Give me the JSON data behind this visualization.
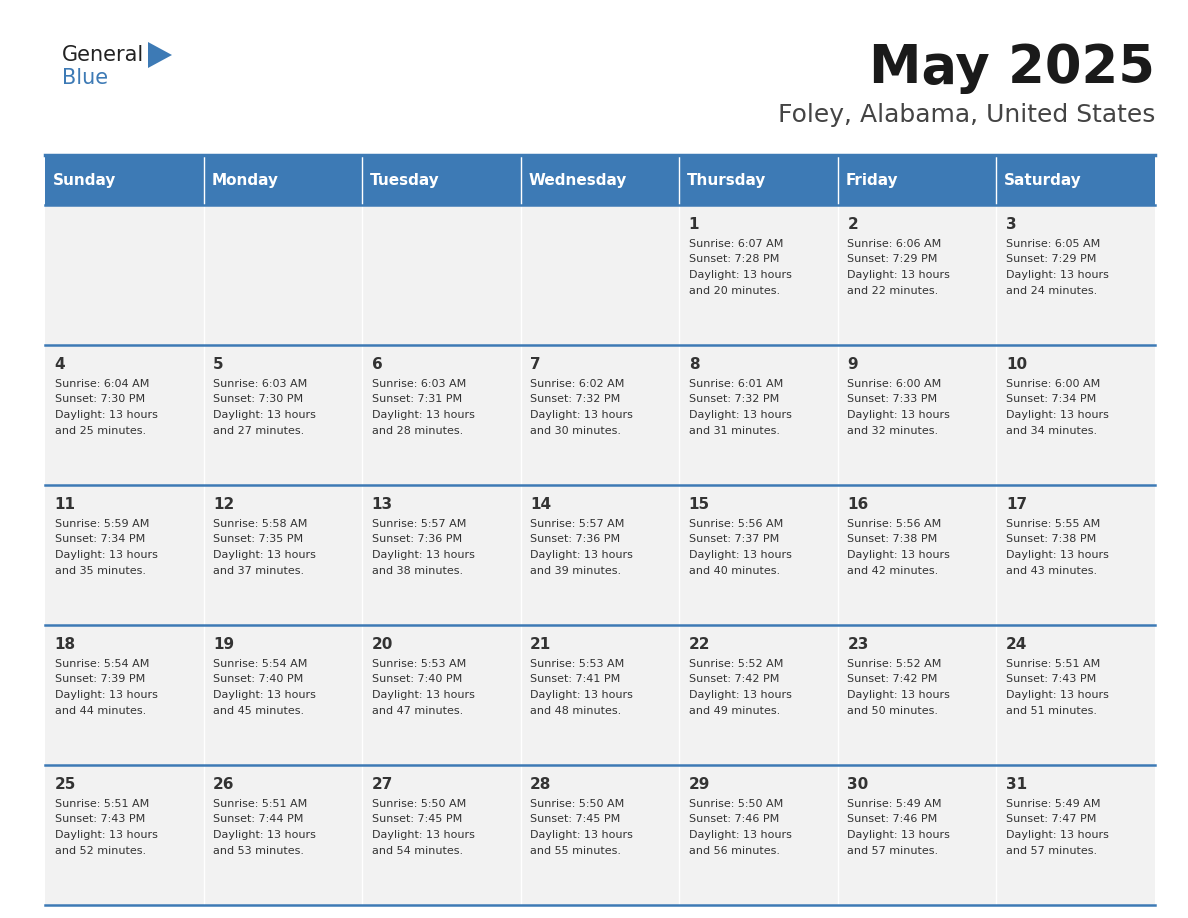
{
  "title": "May 2025",
  "subtitle": "Foley, Alabama, United States",
  "header_bg": "#3D7AB5",
  "header_text": "#FFFFFF",
  "cell_bg": "#F2F2F2",
  "cell_text": "#333333",
  "border_color": "#3D7AB5",
  "days_of_week": [
    "Sunday",
    "Monday",
    "Tuesday",
    "Wednesday",
    "Thursday",
    "Friday",
    "Saturday"
  ],
  "calendar": [
    [
      {
        "day": "",
        "sunrise": "",
        "sunset": "",
        "daylight": ""
      },
      {
        "day": "",
        "sunrise": "",
        "sunset": "",
        "daylight": ""
      },
      {
        "day": "",
        "sunrise": "",
        "sunset": "",
        "daylight": ""
      },
      {
        "day": "",
        "sunrise": "",
        "sunset": "",
        "daylight": ""
      },
      {
        "day": "1",
        "sunrise": "6:07 AM",
        "sunset": "7:28 PM",
        "daylight": "13 hours and 20 minutes."
      },
      {
        "day": "2",
        "sunrise": "6:06 AM",
        "sunset": "7:29 PM",
        "daylight": "13 hours and 22 minutes."
      },
      {
        "day": "3",
        "sunrise": "6:05 AM",
        "sunset": "7:29 PM",
        "daylight": "13 hours and 24 minutes."
      }
    ],
    [
      {
        "day": "4",
        "sunrise": "6:04 AM",
        "sunset": "7:30 PM",
        "daylight": "13 hours and 25 minutes."
      },
      {
        "day": "5",
        "sunrise": "6:03 AM",
        "sunset": "7:30 PM",
        "daylight": "13 hours and 27 minutes."
      },
      {
        "day": "6",
        "sunrise": "6:03 AM",
        "sunset": "7:31 PM",
        "daylight": "13 hours and 28 minutes."
      },
      {
        "day": "7",
        "sunrise": "6:02 AM",
        "sunset": "7:32 PM",
        "daylight": "13 hours and 30 minutes."
      },
      {
        "day": "8",
        "sunrise": "6:01 AM",
        "sunset": "7:32 PM",
        "daylight": "13 hours and 31 minutes."
      },
      {
        "day": "9",
        "sunrise": "6:00 AM",
        "sunset": "7:33 PM",
        "daylight": "13 hours and 32 minutes."
      },
      {
        "day": "10",
        "sunrise": "6:00 AM",
        "sunset": "7:34 PM",
        "daylight": "13 hours and 34 minutes."
      }
    ],
    [
      {
        "day": "11",
        "sunrise": "5:59 AM",
        "sunset": "7:34 PM",
        "daylight": "13 hours and 35 minutes."
      },
      {
        "day": "12",
        "sunrise": "5:58 AM",
        "sunset": "7:35 PM",
        "daylight": "13 hours and 37 minutes."
      },
      {
        "day": "13",
        "sunrise": "5:57 AM",
        "sunset": "7:36 PM",
        "daylight": "13 hours and 38 minutes."
      },
      {
        "day": "14",
        "sunrise": "5:57 AM",
        "sunset": "7:36 PM",
        "daylight": "13 hours and 39 minutes."
      },
      {
        "day": "15",
        "sunrise": "5:56 AM",
        "sunset": "7:37 PM",
        "daylight": "13 hours and 40 minutes."
      },
      {
        "day": "16",
        "sunrise": "5:56 AM",
        "sunset": "7:38 PM",
        "daylight": "13 hours and 42 minutes."
      },
      {
        "day": "17",
        "sunrise": "5:55 AM",
        "sunset": "7:38 PM",
        "daylight": "13 hours and 43 minutes."
      }
    ],
    [
      {
        "day": "18",
        "sunrise": "5:54 AM",
        "sunset": "7:39 PM",
        "daylight": "13 hours and 44 minutes."
      },
      {
        "day": "19",
        "sunrise": "5:54 AM",
        "sunset": "7:40 PM",
        "daylight": "13 hours and 45 minutes."
      },
      {
        "day": "20",
        "sunrise": "5:53 AM",
        "sunset": "7:40 PM",
        "daylight": "13 hours and 47 minutes."
      },
      {
        "day": "21",
        "sunrise": "5:53 AM",
        "sunset": "7:41 PM",
        "daylight": "13 hours and 48 minutes."
      },
      {
        "day": "22",
        "sunrise": "5:52 AM",
        "sunset": "7:42 PM",
        "daylight": "13 hours and 49 minutes."
      },
      {
        "day": "23",
        "sunrise": "5:52 AM",
        "sunset": "7:42 PM",
        "daylight": "13 hours and 50 minutes."
      },
      {
        "day": "24",
        "sunrise": "5:51 AM",
        "sunset": "7:43 PM",
        "daylight": "13 hours and 51 minutes."
      }
    ],
    [
      {
        "day": "25",
        "sunrise": "5:51 AM",
        "sunset": "7:43 PM",
        "daylight": "13 hours and 52 minutes."
      },
      {
        "day": "26",
        "sunrise": "5:51 AM",
        "sunset": "7:44 PM",
        "daylight": "13 hours and 53 minutes."
      },
      {
        "day": "27",
        "sunrise": "5:50 AM",
        "sunset": "7:45 PM",
        "daylight": "13 hours and 54 minutes."
      },
      {
        "day": "28",
        "sunrise": "5:50 AM",
        "sunset": "7:45 PM",
        "daylight": "13 hours and 55 minutes."
      },
      {
        "day": "29",
        "sunrise": "5:50 AM",
        "sunset": "7:46 PM",
        "daylight": "13 hours and 56 minutes."
      },
      {
        "day": "30",
        "sunrise": "5:49 AM",
        "sunset": "7:46 PM",
        "daylight": "13 hours and 57 minutes."
      },
      {
        "day": "31",
        "sunrise": "5:49 AM",
        "sunset": "7:47 PM",
        "daylight": "13 hours and 57 minutes."
      }
    ]
  ],
  "logo_general_color": "#222222",
  "logo_blue_color": "#3D7AB5",
  "logo_triangle_color": "#3D7AB5",
  "title_fontsize": 38,
  "subtitle_fontsize": 18,
  "header_fontsize": 11,
  "day_num_fontsize": 11,
  "cell_text_fontsize": 8
}
